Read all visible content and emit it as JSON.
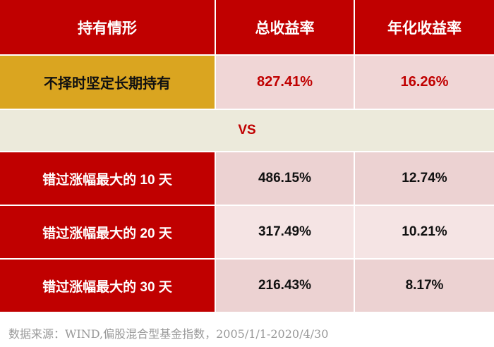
{
  "header": {
    "col1": "持有情形",
    "col2": "总收益率",
    "col3": "年化收益率"
  },
  "hold": {
    "label": "不择时坚定长期持有",
    "total": "827.41%",
    "annual": "16.26%"
  },
  "vs": "VS",
  "miss_rows": [
    {
      "label": "错过涨幅最大的 10 天",
      "total": "486.15%",
      "annual": "12.74%"
    },
    {
      "label": "错过涨幅最大的 20 天",
      "total": "317.49%",
      "annual": "10.21%"
    },
    {
      "label": "错过涨幅最大的 30 天",
      "total": "216.43%",
      "annual": "8.17%"
    }
  ],
  "source": "数据来源：WIND,偏股混合型基金指数，2005/1/1-2020/4/30",
  "colors": {
    "header_red": "#c00000",
    "gold": "#daa520",
    "pink": "#f0d6d6",
    "vs_band": "#eceadb"
  }
}
